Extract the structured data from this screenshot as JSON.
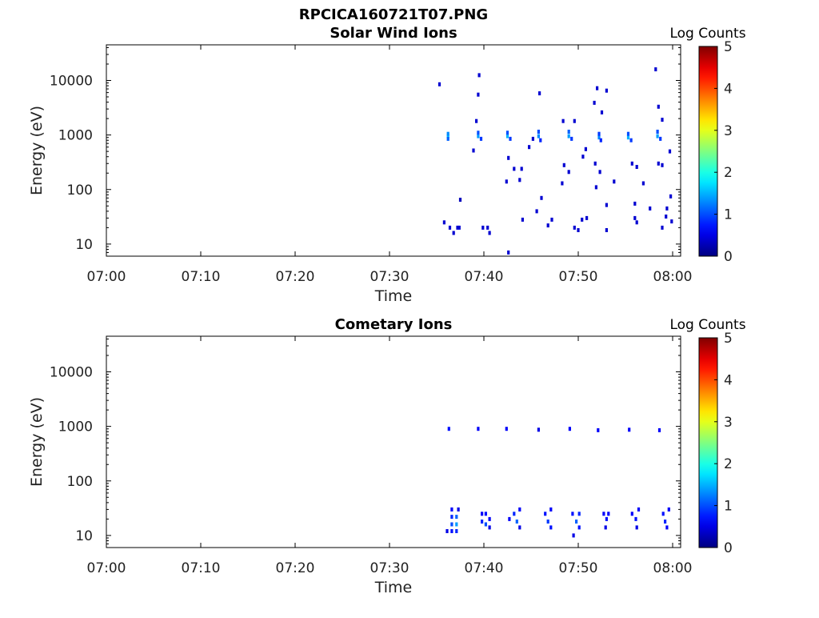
{
  "figure": {
    "title": "RPCICA160721T07.PNG"
  },
  "colors": {
    "colormap": "jet",
    "axis": "#000000",
    "background": "#ffffff"
  },
  "chart_data": [
    {
      "type": "heatmap",
      "title": "Solar Wind Ions",
      "xlabel": "Time",
      "ylabel": "Energy (eV)",
      "y_scale": "log",
      "xlim": [
        "07:00",
        "08:00"
      ],
      "ylim": [
        6,
        45000
      ],
      "x_ticks": [
        "07:00",
        "07:10",
        "07:20",
        "07:30",
        "07:40",
        "07:50",
        "08:00"
      ],
      "y_ticks": [
        {
          "value": 10,
          "label": "10"
        },
        {
          "value": 100,
          "label": "100"
        },
        {
          "value": 1000,
          "label": "1000"
        },
        {
          "value": 10000,
          "label": "10000"
        }
      ],
      "colorbar": {
        "label": "Log Counts",
        "range": [
          0,
          5
        ],
        "ticks": [
          "0",
          "1",
          "2",
          "3",
          "4",
          "5"
        ]
      },
      "grid": false,
      "cells": [
        {
          "t": "07:36.2",
          "e": 950,
          "v": 1.6
        },
        {
          "t": "07:36.2",
          "e": 1050,
          "v": 1.3
        },
        {
          "t": "07:36.2",
          "e": 850,
          "v": 1.1
        },
        {
          "t": "07:39.4",
          "e": 950,
          "v": 1.4
        },
        {
          "t": "07:39.4",
          "e": 1100,
          "v": 1.0
        },
        {
          "t": "07:39.7",
          "e": 850,
          "v": 0.9
        },
        {
          "t": "07:42.5",
          "e": 950,
          "v": 1.5
        },
        {
          "t": "07:42.5",
          "e": 1100,
          "v": 1.0
        },
        {
          "t": "07:42.8",
          "e": 850,
          "v": 0.9
        },
        {
          "t": "07:45.8",
          "e": 950,
          "v": 1.3
        },
        {
          "t": "07:45.8",
          "e": 1150,
          "v": 1.0
        },
        {
          "t": "07:46.0",
          "e": 800,
          "v": 0.8
        },
        {
          "t": "07:49.0",
          "e": 950,
          "v": 1.4
        },
        {
          "t": "07:49.0",
          "e": 1150,
          "v": 1.1
        },
        {
          "t": "07:49.3",
          "e": 850,
          "v": 0.9
        },
        {
          "t": "07:52.2",
          "e": 900,
          "v": 1.3
        },
        {
          "t": "07:52.2",
          "e": 1050,
          "v": 0.9
        },
        {
          "t": "07:52.4",
          "e": 800,
          "v": 0.8
        },
        {
          "t": "07:55.3",
          "e": 900,
          "v": 1.5
        },
        {
          "t": "07:55.3",
          "e": 1050,
          "v": 1.0
        },
        {
          "t": "07:55.6",
          "e": 800,
          "v": 0.9
        },
        {
          "t": "07:58.4",
          "e": 950,
          "v": 1.4
        },
        {
          "t": "07:58.4",
          "e": 1150,
          "v": 1.0
        },
        {
          "t": "07:58.7",
          "e": 850,
          "v": 0.9
        },
        {
          "t": "07:35.3",
          "e": 8500,
          "v": 0.4
        },
        {
          "t": "07:39.5",
          "e": 12500,
          "v": 0.4
        },
        {
          "t": "07:39.4",
          "e": 5500,
          "v": 0.4
        },
        {
          "t": "07:39.2",
          "e": 1800,
          "v": 0.4
        },
        {
          "t": "07:38.9",
          "e": 520,
          "v": 0.4
        },
        {
          "t": "07:42.6",
          "e": 380,
          "v": 0.4
        },
        {
          "t": "07:43.2",
          "e": 240,
          "v": 0.4
        },
        {
          "t": "07:42.4",
          "e": 140,
          "v": 0.4
        },
        {
          "t": "07:44.0",
          "e": 240,
          "v": 0.4
        },
        {
          "t": "07:43.8",
          "e": 150,
          "v": 0.4
        },
        {
          "t": "07:45.9",
          "e": 5800,
          "v": 0.4
        },
        {
          "t": "07:45.2",
          "e": 850,
          "v": 0.4
        },
        {
          "t": "07:44.8",
          "e": 600,
          "v": 0.4
        },
        {
          "t": "07:46.1",
          "e": 70,
          "v": 0.4
        },
        {
          "t": "07:45.6",
          "e": 40,
          "v": 0.4
        },
        {
          "t": "07:48.4",
          "e": 1800,
          "v": 0.4
        },
        {
          "t": "07:48.5",
          "e": 280,
          "v": 0.4
        },
        {
          "t": "07:49.0",
          "e": 210,
          "v": 0.4
        },
        {
          "t": "07:48.3",
          "e": 130,
          "v": 0.4
        },
        {
          "t": "07:49.6",
          "e": 1800,
          "v": 0.4
        },
        {
          "t": "07:50.8",
          "e": 550,
          "v": 0.4
        },
        {
          "t": "07:52.0",
          "e": 7200,
          "v": 0.4
        },
        {
          "t": "07:51.7",
          "e": 3900,
          "v": 0.4
        },
        {
          "t": "07:52.5",
          "e": 2600,
          "v": 0.4
        },
        {
          "t": "07:53.0",
          "e": 6500,
          "v": 0.4
        },
        {
          "t": "07:52.3",
          "e": 210,
          "v": 0.4
        },
        {
          "t": "07:51.9",
          "e": 110,
          "v": 0.4
        },
        {
          "t": "07:53.0",
          "e": 52,
          "v": 0.4
        },
        {
          "t": "07:53.8",
          "e": 140,
          "v": 0.4
        },
        {
          "t": "07:50.5",
          "e": 400,
          "v": 0.4
        },
        {
          "t": "07:51.8",
          "e": 300,
          "v": 0.4
        },
        {
          "t": "07:55.7",
          "e": 300,
          "v": 0.4
        },
        {
          "t": "07:56.2",
          "e": 260,
          "v": 0.4
        },
        {
          "t": "07:56.9",
          "e": 130,
          "v": 0.4
        },
        {
          "t": "07:56.0",
          "e": 55,
          "v": 0.4
        },
        {
          "t": "07:57.6",
          "e": 45,
          "v": 0.4
        },
        {
          "t": "07:58.2",
          "e": 16000,
          "v": 0.4
        },
        {
          "t": "07:58.5",
          "e": 3300,
          "v": 0.4
        },
        {
          "t": "07:58.9",
          "e": 1900,
          "v": 0.4
        },
        {
          "t": "07:58.5",
          "e": 300,
          "v": 0.4
        },
        {
          "t": "07:58.9",
          "e": 280,
          "v": 0.4
        },
        {
          "t": "07:59.7",
          "e": 500,
          "v": 0.4
        },
        {
          "t": "07:59.8",
          "e": 75,
          "v": 0.4
        },
        {
          "t": "07:59.4",
          "e": 45,
          "v": 0.4
        },
        {
          "t": "07:37.5",
          "e": 65,
          "v": 0.3
        },
        {
          "t": "07:35.8",
          "e": 25,
          "v": 0.4
        },
        {
          "t": "07:36.4",
          "e": 20,
          "v": 0.4
        },
        {
          "t": "07:36.8",
          "e": 16,
          "v": 0.4
        },
        {
          "t": "07:37.2",
          "e": 20,
          "v": 0.4
        },
        {
          "t": "07:37.4",
          "e": 20,
          "v": 0.4
        },
        {
          "t": "07:39.9",
          "e": 20,
          "v": 0.4
        },
        {
          "t": "07:40.4",
          "e": 20,
          "v": 0.4
        },
        {
          "t": "07:40.6",
          "e": 16,
          "v": 0.4
        },
        {
          "t": "07:42.6",
          "e": 7,
          "v": 0.4
        },
        {
          "t": "07:44.1",
          "e": 28,
          "v": 0.4
        },
        {
          "t": "07:46.8",
          "e": 22,
          "v": 0.4
        },
        {
          "t": "07:47.2",
          "e": 28,
          "v": 0.4
        },
        {
          "t": "07:49.6",
          "e": 20,
          "v": 0.4
        },
        {
          "t": "07:50.0",
          "e": 18,
          "v": 0.4
        },
        {
          "t": "07:50.4",
          "e": 28,
          "v": 0.4
        },
        {
          "t": "07:50.9",
          "e": 30,
          "v": 0.4
        },
        {
          "t": "07:53.0",
          "e": 18,
          "v": 0.4
        },
        {
          "t": "07:56.0",
          "e": 30,
          "v": 0.4
        },
        {
          "t": "07:56.2",
          "e": 25,
          "v": 0.4
        },
        {
          "t": "07:58.9",
          "e": 20,
          "v": 0.4
        },
        {
          "t": "07:59.3",
          "e": 32,
          "v": 0.4
        },
        {
          "t": "07:59.9",
          "e": 26,
          "v": 0.4
        }
      ]
    },
    {
      "type": "heatmap",
      "title": "Cometary Ions",
      "xlabel": "Time",
      "ylabel": "Energy (eV)",
      "y_scale": "log",
      "xlim": [
        "07:00",
        "08:00"
      ],
      "ylim": [
        6,
        45000
      ],
      "x_ticks": [
        "07:00",
        "07:10",
        "07:20",
        "07:30",
        "07:40",
        "07:50",
        "08:00"
      ],
      "y_ticks": [
        {
          "value": 10,
          "label": "10"
        },
        {
          "value": 100,
          "label": "100"
        },
        {
          "value": 1000,
          "label": "1000"
        },
        {
          "value": 10000,
          "label": "10000"
        }
      ],
      "colorbar": {
        "label": "Log Counts",
        "range": [
          0,
          5
        ],
        "ticks": [
          "0",
          "1",
          "2",
          "3",
          "4",
          "5"
        ]
      },
      "grid": false,
      "cells": [
        {
          "t": "07:36.3",
          "e": 900,
          "v": 0.7
        },
        {
          "t": "07:39.4",
          "e": 900,
          "v": 0.6
        },
        {
          "t": "07:42.4",
          "e": 900,
          "v": 0.6
        },
        {
          "t": "07:45.8",
          "e": 870,
          "v": 0.5
        },
        {
          "t": "07:49.1",
          "e": 900,
          "v": 0.6
        },
        {
          "t": "07:52.1",
          "e": 850,
          "v": 0.6
        },
        {
          "t": "07:55.4",
          "e": 870,
          "v": 0.6
        },
        {
          "t": "07:58.6",
          "e": 850,
          "v": 0.6
        },
        {
          "t": "07:36.6",
          "e": 30,
          "v": 0.6
        },
        {
          "t": "07:36.6",
          "e": 22,
          "v": 0.8
        },
        {
          "t": "07:36.6",
          "e": 16,
          "v": 1.0
        },
        {
          "t": "07:36.6",
          "e": 12,
          "v": 0.7
        },
        {
          "t": "07:37.1",
          "e": 22,
          "v": 1.1
        },
        {
          "t": "07:37.1",
          "e": 16,
          "v": 1.4
        },
        {
          "t": "07:37.1",
          "e": 12,
          "v": 0.8
        },
        {
          "t": "07:37.3",
          "e": 30,
          "v": 0.5
        },
        {
          "t": "07:36.1",
          "e": 12,
          "v": 0.5
        },
        {
          "t": "07:39.8",
          "e": 25,
          "v": 0.6
        },
        {
          "t": "07:39.8",
          "e": 18,
          "v": 0.8
        },
        {
          "t": "07:40.2",
          "e": 16,
          "v": 1.0
        },
        {
          "t": "07:40.2",
          "e": 25,
          "v": 0.7
        },
        {
          "t": "07:40.6",
          "e": 20,
          "v": 0.6
        },
        {
          "t": "07:40.6",
          "e": 14,
          "v": 0.5
        },
        {
          "t": "07:42.7",
          "e": 20,
          "v": 0.6
        },
        {
          "t": "07:43.2",
          "e": 25,
          "v": 0.8
        },
        {
          "t": "07:43.5",
          "e": 18,
          "v": 1.1
        },
        {
          "t": "07:43.8",
          "e": 30,
          "v": 0.6
        },
        {
          "t": "07:43.8",
          "e": 14,
          "v": 0.5
        },
        {
          "t": "07:46.5",
          "e": 25,
          "v": 0.7
        },
        {
          "t": "07:46.8",
          "e": 18,
          "v": 0.9
        },
        {
          "t": "07:47.1",
          "e": 30,
          "v": 0.6
        },
        {
          "t": "07:47.1",
          "e": 14,
          "v": 0.7
        },
        {
          "t": "07:49.4",
          "e": 25,
          "v": 0.7
        },
        {
          "t": "07:49.8",
          "e": 18,
          "v": 1.1
        },
        {
          "t": "07:50.1",
          "e": 25,
          "v": 0.8
        },
        {
          "t": "07:50.1",
          "e": 14,
          "v": 0.7
        },
        {
          "t": "07:49.5",
          "e": 10,
          "v": 0.5
        },
        {
          "t": "07:52.7",
          "e": 25,
          "v": 0.6
        },
        {
          "t": "07:53.0",
          "e": 20,
          "v": 0.7
        },
        {
          "t": "07:53.2",
          "e": 25,
          "v": 0.6
        },
        {
          "t": "07:52.9",
          "e": 14,
          "v": 0.5
        },
        {
          "t": "07:55.7",
          "e": 25,
          "v": 0.6
        },
        {
          "t": "07:56.1",
          "e": 20,
          "v": 0.7
        },
        {
          "t": "07:56.4",
          "e": 30,
          "v": 0.6
        },
        {
          "t": "07:56.2",
          "e": 14,
          "v": 0.5
        },
        {
          "t": "07:59.0",
          "e": 25,
          "v": 0.7
        },
        {
          "t": "07:59.2",
          "e": 18,
          "v": 0.8
        },
        {
          "t": "07:59.6",
          "e": 30,
          "v": 0.6
        },
        {
          "t": "07:59.4",
          "e": 14,
          "v": 0.6
        }
      ]
    }
  ]
}
